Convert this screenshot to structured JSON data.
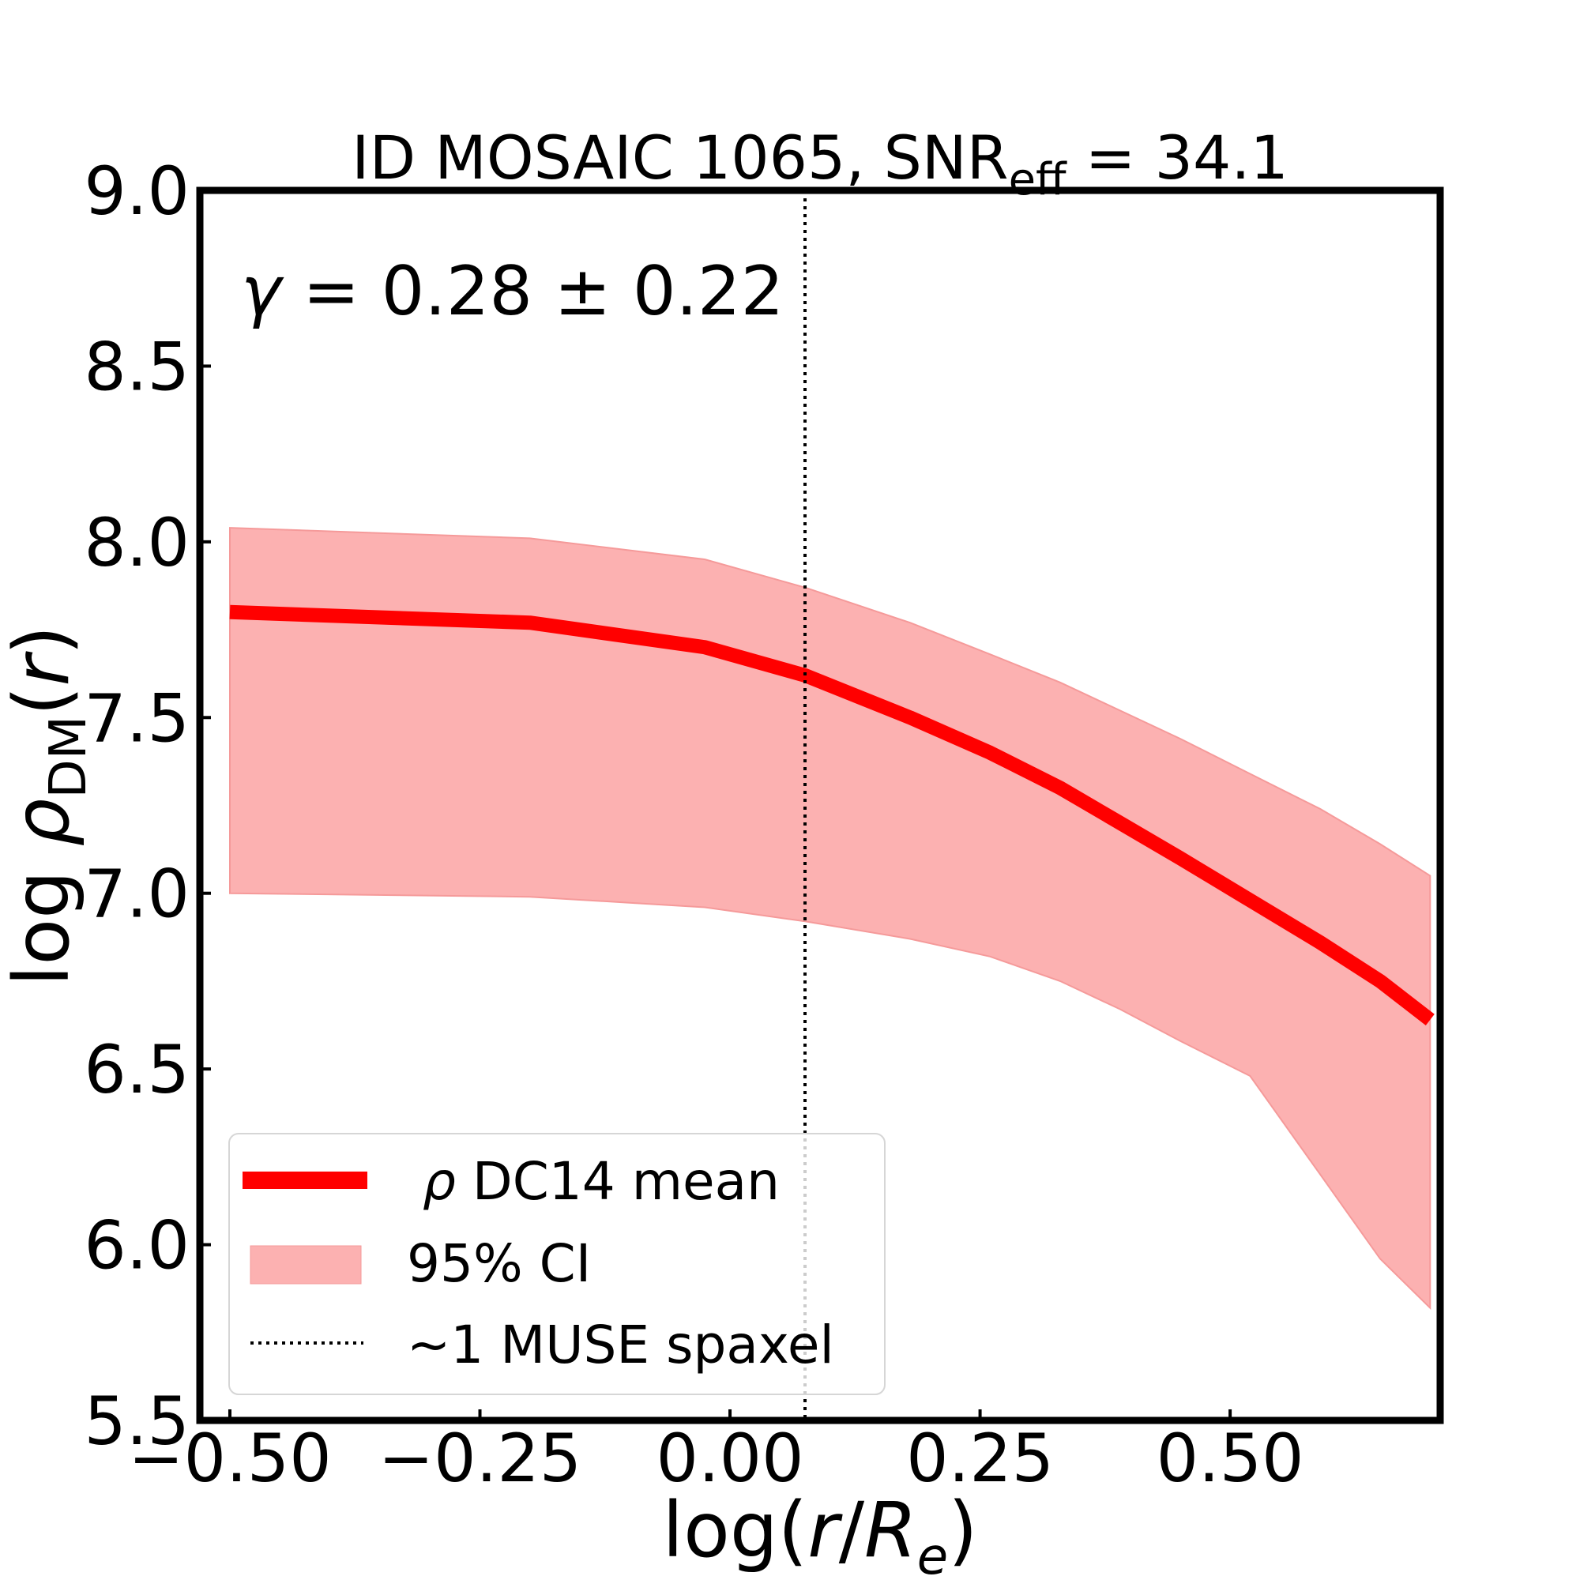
{
  "chart_data": {
    "type": "line",
    "title": {
      "main": "ID MOSAIC 1065, SNR",
      "sub": "eff",
      "rest": " = 34.1"
    },
    "annotation": {
      "gamma_symbol": "γ",
      "text": " = 0.28 ± 0.22"
    },
    "xlabel": {
      "pre": "log(",
      "r": "r",
      "slash": "/",
      "R": "R",
      "sub": "e",
      "post": ")"
    },
    "ylabel": {
      "pre": "log ",
      "rho": "ρ",
      "sub": "DM",
      "open": "(",
      "r": "r",
      "close": ")"
    },
    "xlim": [
      -0.53,
      0.71
    ],
    "ylim": [
      5.5,
      9.0
    ],
    "xticks": [
      -0.5,
      -0.25,
      0.0,
      0.25,
      0.5
    ],
    "xtick_labels": [
      "−0.50",
      "−0.25",
      "0.00",
      "0.25",
      "0.50"
    ],
    "yticks": [
      5.5,
      6.0,
      6.5,
      7.0,
      7.5,
      8.0,
      8.5,
      9.0
    ],
    "ytick_labels": [
      "5.5",
      "6.0",
      "6.5",
      "7.0",
      "7.5",
      "8.0",
      "8.5",
      "9.0"
    ],
    "grid": false,
    "legend_position": "lower-left",
    "vline": {
      "x": 0.075,
      "style": "dotted",
      "color": "#000000",
      "label": "~1 MUSE spaxel"
    },
    "series": [
      {
        "name": "ρ DC14 mean",
        "legend": {
          "symbol": "ρ",
          "text": " DC14 mean"
        },
        "color": "#ff0000",
        "x": [
          -0.5,
          -0.2,
          -0.025,
          0.075,
          0.18,
          0.26,
          0.33,
          0.39,
          0.45,
          0.52,
          0.59,
          0.65,
          0.7
        ],
        "y": [
          7.8,
          7.77,
          7.7,
          7.62,
          7.5,
          7.4,
          7.3,
          7.2,
          7.1,
          6.98,
          6.86,
          6.75,
          6.64
        ]
      }
    ],
    "band": {
      "name": "95% CI",
      "color": "#fcb1b1",
      "x": [
        -0.5,
        -0.2,
        -0.025,
        0.075,
        0.18,
        0.26,
        0.33,
        0.39,
        0.45,
        0.52,
        0.59,
        0.65,
        0.7
      ],
      "upper": [
        8.04,
        8.01,
        7.95,
        7.87,
        7.77,
        7.68,
        7.6,
        7.52,
        7.44,
        7.34,
        7.24,
        7.14,
        7.05
      ],
      "lower": [
        7.0,
        6.99,
        6.96,
        6.92,
        6.87,
        6.82,
        6.75,
        6.67,
        6.58,
        6.48,
        6.2,
        5.96,
        5.82
      ]
    }
  }
}
